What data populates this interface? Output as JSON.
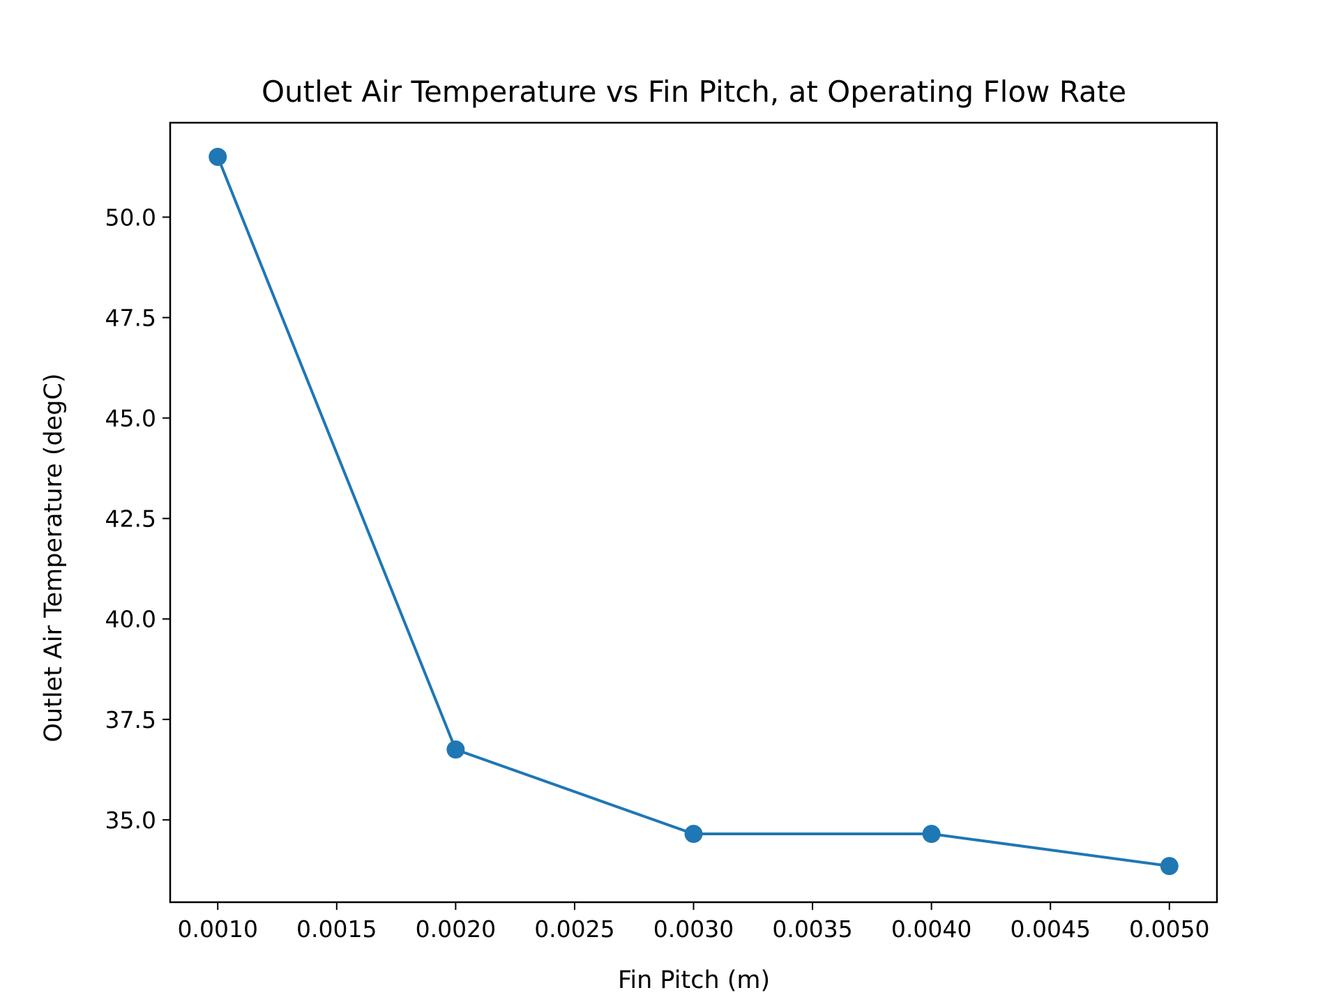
{
  "chart_data": {
    "type": "line",
    "title": "Outlet Air Temperature vs Fin Pitch, at Operating Flow Rate",
    "xlabel": "Fin Pitch (m)",
    "ylabel": "Outlet Air Temperature (degC)",
    "x": [
      0.001,
      0.002,
      0.003,
      0.004,
      0.005
    ],
    "series": [
      {
        "values": [
          51.5,
          36.75,
          34.65,
          34.65,
          33.85
        ]
      }
    ],
    "xlim": [
      0.0008,
      0.0052
    ],
    "ylim": [
      32.95,
      52.35
    ],
    "xticks": [
      0.001,
      0.0015,
      0.002,
      0.0025,
      0.003,
      0.0035,
      0.004,
      0.0045,
      0.005
    ],
    "xtick_labels": [
      "0.0010",
      "0.0015",
      "0.0020",
      "0.0025",
      "0.0030",
      "0.0035",
      "0.0040",
      "0.0045",
      "0.0050"
    ],
    "yticks": [
      35.0,
      37.5,
      40.0,
      42.5,
      45.0,
      47.5,
      50.0
    ],
    "ytick_labels": [
      "35.0",
      "37.5",
      "40.0",
      "42.5",
      "45.0",
      "47.5",
      "50.0"
    ],
    "grid": false,
    "marker": "circle",
    "colors": {
      "line": "#1f77b4",
      "axes": "#000000"
    }
  }
}
